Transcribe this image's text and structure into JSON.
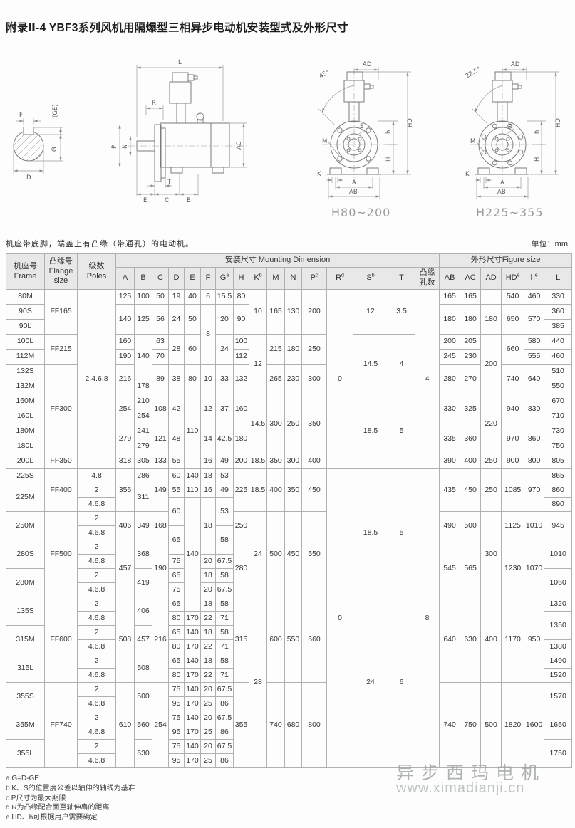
{
  "page": {
    "title": "附录Ⅱ-4 YBF3系列风机用隔爆型三相异步电动机安装型式及外形尺寸",
    "subtitle": "机座带底脚，端盖上有凸缘（带通孔）的电动机。",
    "unit_label": "单位：mm"
  },
  "drawings": {
    "shaft_section": {
      "labels": {
        "F": "F",
        "GE": "(GE)",
        "G": "G",
        "D": "D"
      }
    },
    "side_view": {
      "labels": {
        "L": "L",
        "R": "R",
        "P": "P",
        "N": "N",
        "AC": "AC",
        "T": "T",
        "E": "E",
        "C": "C",
        "B": "B"
      }
    },
    "front_4hole": {
      "angle": "45°",
      "caption": "H80~200",
      "labels": {
        "AD": "AD",
        "S": "S",
        "M": "M",
        "h": "h",
        "HD": "HD",
        "H": "H",
        "K": "K",
        "A": "A",
        "AB": "AB"
      }
    },
    "front_8hole": {
      "angle": "22.5°",
      "caption": "H225~355",
      "labels": {
        "AD": "AD",
        "S": "S",
        "M": "M",
        "h": "h",
        "HD": "HD",
        "H": "H",
        "K": "K",
        "A": "A",
        "AB": "AB"
      }
    }
  },
  "table": {
    "header": {
      "frame": "机座号\nFrame",
      "flange": "凸缘号\nFlange\nsize",
      "poles": "级数\nPoles",
      "mounting_group": "安装尺寸 Mounting Dimension",
      "figure_group": "外形尺寸Figure size",
      "columns": [
        {
          "b": "A"
        },
        {
          "b": "B"
        },
        {
          "b": "C"
        },
        {
          "b": "D"
        },
        {
          "b": "E"
        },
        {
          "b": "F"
        },
        {
          "b": "G",
          "s": "a"
        },
        {
          "b": "H"
        },
        {
          "b": "K",
          "s": "b"
        },
        {
          "b": "M"
        },
        {
          "b": "N"
        },
        {
          "b": "P",
          "s": "c"
        },
        {
          "b": "R",
          "s": "d"
        },
        {
          "b": "S",
          "s": "b"
        },
        {
          "b": "T"
        },
        {
          "b": "凸缘\n孔数"
        },
        {
          "b": "AB"
        },
        {
          "b": "AC"
        },
        {
          "b": "AD"
        },
        {
          "b": "HD",
          "s": "e"
        },
        {
          "b": "h",
          "s": "e"
        },
        {
          "b": "L"
        }
      ]
    },
    "rows": [
      [
        [
          "80M"
        ],
        [
          "FF165",
          3
        ],
        [
          "2.4.6.8",
          12
        ],
        [
          "125"
        ],
        [
          "100"
        ],
        [
          "50"
        ],
        [
          "19"
        ],
        [
          "40"
        ],
        [
          "6"
        ],
        [
          "15.5"
        ],
        [
          "80"
        ],
        [
          "10",
          3
        ],
        [
          "165",
          3
        ],
        [
          "130",
          3
        ],
        [
          "200",
          3
        ],
        [
          "0",
          12
        ],
        [
          "12",
          3
        ],
        [
          "3.5",
          3
        ],
        [
          "4",
          12
        ],
        [
          "165"
        ],
        [
          "165"
        ],
        [
          "",
          1
        ],
        [
          "540"
        ],
        [
          "460"
        ],
        [
          "330"
        ]
      ],
      [
        [
          "90S"
        ],
        [
          "140",
          2
        ],
        [
          "125",
          2
        ],
        [
          "56",
          2
        ],
        [
          "24",
          2
        ],
        [
          "50",
          2
        ],
        [
          "8",
          4
        ],
        [
          "20",
          2
        ],
        [
          "90",
          2
        ],
        [
          "180",
          2
        ],
        [
          "180",
          2
        ],
        [
          "180",
          2
        ],
        [
          "650",
          2
        ],
        [
          "570",
          2
        ],
        [
          "360"
        ]
      ],
      [
        [
          "90L"
        ],
        [
          "385"
        ]
      ],
      [
        [
          "100L"
        ],
        [
          "FF215",
          2
        ],
        [
          "160"
        ],
        [
          "140",
          3
        ],
        [
          "63"
        ],
        [
          "28",
          2
        ],
        [
          "60",
          2
        ],
        [
          "24",
          2
        ],
        [
          "100"
        ],
        [
          "12",
          4
        ],
        [
          "215",
          2
        ],
        [
          "180",
          2
        ],
        [
          "250",
          2
        ],
        [
          "14.5",
          4
        ],
        [
          "4",
          4
        ],
        [
          "200"
        ],
        [
          "205"
        ],
        [
          "200",
          4
        ],
        [
          "660",
          2
        ],
        [
          "580"
        ],
        [
          "440"
        ]
      ],
      [
        [
          "112M"
        ],
        [
          "190"
        ],
        [
          "70"
        ],
        [
          "112"
        ],
        [
          "245"
        ],
        [
          "230"
        ],
        [
          "555"
        ],
        [
          "460"
        ]
      ],
      [
        [
          "132S"
        ],
        [
          "FF300",
          6
        ],
        [
          "216",
          2
        ],
        [
          "89",
          2
        ],
        [
          "38",
          2
        ],
        [
          "80",
          2
        ],
        [
          "10",
          2
        ],
        [
          "33",
          2
        ],
        [
          "132",
          2
        ],
        [
          "265",
          2
        ],
        [
          "230",
          2
        ],
        [
          "300",
          2
        ],
        [
          "280",
          2
        ],
        [
          "270",
          2
        ],
        [
          "740",
          2
        ],
        [
          "640",
          2
        ],
        [
          "510"
        ]
      ],
      [
        [
          "132M"
        ],
        [
          "178"
        ],
        [
          "550"
        ]
      ],
      [
        [
          "160M"
        ],
        [
          "254",
          2
        ],
        [
          "210"
        ],
        [
          "108",
          2
        ],
        [
          "42",
          2
        ],
        [
          "110",
          5
        ],
        [
          "12",
          2
        ],
        [
          "37",
          2
        ],
        [
          "160",
          2
        ],
        [
          "14.5",
          4
        ],
        [
          "300",
          4
        ],
        [
          "250",
          4
        ],
        [
          "350",
          4
        ],
        [
          "18.5",
          5
        ],
        [
          "5",
          5
        ],
        [
          "330",
          2
        ],
        [
          "325",
          2
        ],
        [
          "220",
          4
        ],
        [
          "940",
          2
        ],
        [
          "830",
          2
        ],
        [
          "670"
        ]
      ],
      [
        [
          "160L"
        ],
        [
          "254"
        ],
        [
          "710"
        ]
      ],
      [
        [
          "180M"
        ],
        [
          "279",
          2
        ],
        [
          "241"
        ],
        [
          "121",
          2
        ],
        [
          "48",
          2
        ],
        [
          "14",
          2
        ],
        [
          "42.5",
          2
        ],
        [
          "180",
          2
        ],
        [
          "335",
          2
        ],
        [
          "360",
          2
        ],
        [
          "970",
          2
        ],
        [
          "860",
          2
        ],
        [
          "730"
        ]
      ],
      [
        [
          "180L"
        ],
        [
          "279"
        ],
        [
          "750"
        ]
      ],
      [
        [
          "200L"
        ],
        [
          "FF350"
        ],
        [
          "318"
        ],
        [
          "305"
        ],
        [
          "133"
        ],
        [
          "55"
        ],
        [
          "16"
        ],
        [
          "49"
        ],
        [
          "200"
        ],
        [
          "18.5"
        ],
        [
          "350"
        ],
        [
          "300"
        ],
        [
          "400"
        ],
        [
          "390"
        ],
        [
          "400"
        ],
        [
          "250"
        ],
        [
          "900"
        ],
        [
          "800"
        ],
        [
          "805"
        ]
      ],
      [
        [
          "225S"
        ],
        [
          "FF400",
          3
        ],
        [
          "4.8"
        ],
        [
          "356",
          3
        ],
        [
          "286"
        ],
        [
          "149",
          3
        ],
        [
          "60"
        ],
        [
          "140"
        ],
        [
          "18"
        ],
        [
          "53"
        ],
        [
          "225",
          3
        ],
        [
          "18.5",
          3
        ],
        [
          "400",
          3
        ],
        [
          "350",
          3
        ],
        [
          "450",
          3
        ],
        [
          "0",
          21
        ],
        [
          "18.5",
          9
        ],
        [
          "5",
          9
        ],
        [
          "8",
          21
        ],
        [
          "435",
          3
        ],
        [
          "450",
          3
        ],
        [
          "250",
          3
        ],
        [
          "1085",
          3
        ],
        [
          "970",
          3
        ],
        [
          "865"
        ]
      ],
      [
        [
          "225M",
          2
        ],
        [
          "2"
        ],
        [
          "311",
          2
        ],
        [
          "55"
        ],
        [
          "110"
        ],
        [
          "16"
        ],
        [
          "49"
        ],
        [
          "860"
        ]
      ],
      [
        [
          "4.6.8"
        ],
        [
          "60",
          2
        ],
        [
          "140",
          8
        ],
        [
          "18",
          4
        ],
        [
          "53",
          2
        ],
        [
          "890"
        ]
      ],
      [
        [
          "250M",
          2
        ],
        [
          "FF500",
          6
        ],
        [
          "2"
        ],
        [
          "406",
          2
        ],
        [
          "349",
          2
        ],
        [
          "168",
          2
        ],
        [
          "250",
          2
        ],
        [
          "24",
          6
        ],
        [
          "500",
          6
        ],
        [
          "450",
          6
        ],
        [
          "550",
          6
        ],
        [
          "490",
          2
        ],
        [
          "500",
          2
        ],
        [
          "300",
          6
        ],
        [
          "1125",
          2
        ],
        [
          "1010",
          2
        ],
        [
          "945",
          2
        ]
      ],
      [
        [
          "4.6.8"
        ],
        [
          "65",
          2
        ],
        [
          "58",
          2
        ]
      ],
      [
        [
          "280S",
          2
        ],
        [
          "2"
        ],
        [
          "457",
          4
        ],
        [
          "368",
          2
        ],
        [
          "190",
          4
        ],
        [
          "280",
          4
        ],
        [
          "545",
          4
        ],
        [
          "565",
          4
        ],
        [
          "1230",
          4
        ],
        [
          "1070",
          4
        ],
        [
          "1010",
          2
        ]
      ],
      [
        [
          "4.6.8"
        ],
        [
          "75"
        ],
        [
          "20"
        ],
        [
          "67.5"
        ]
      ],
      [
        [
          "280M",
          2
        ],
        [
          "2"
        ],
        [
          "419",
          2
        ],
        [
          "65"
        ],
        [
          "18"
        ],
        [
          "58"
        ],
        [
          "1060",
          2
        ]
      ],
      [
        [
          "4.6.8"
        ],
        [
          "75"
        ],
        [
          "20"
        ],
        [
          "67.5"
        ]
      ],
      [
        [
          "135S",
          2
        ],
        [
          "FF600",
          6
        ],
        [
          "2"
        ],
        [
          "508",
          6
        ],
        [
          "406",
          2
        ],
        [
          "216",
          6
        ],
        [
          "65"
        ],
        [
          "18"
        ],
        [
          "58"
        ],
        [
          "315",
          6
        ],
        [
          "28",
          12
        ],
        [
          "600",
          6
        ],
        [
          "550",
          6
        ],
        [
          "660",
          6
        ],
        [
          "24",
          12
        ],
        [
          "6",
          12
        ],
        [
          "640",
          6
        ],
        [
          "630",
          6
        ],
        [
          "400",
          6
        ],
        [
          "1170",
          6
        ],
        [
          "950",
          6
        ],
        [
          "1320"
        ]
      ],
      [
        [
          "4.6.8"
        ],
        [
          "80"
        ],
        [
          "170"
        ],
        [
          "22"
        ],
        [
          "71"
        ],
        [
          "1350",
          2
        ]
      ],
      [
        [
          "315M",
          2
        ],
        [
          "2"
        ],
        [
          "457",
          2
        ],
        [
          "65"
        ],
        [
          "140"
        ],
        [
          "18"
        ],
        [
          "58"
        ]
      ],
      [
        [
          "4.6.8"
        ],
        [
          "80"
        ],
        [
          "170"
        ],
        [
          "22"
        ],
        [
          "71"
        ],
        [
          "1380"
        ]
      ],
      [
        [
          "315L",
          2
        ],
        [
          "2"
        ],
        [
          "508",
          2
        ],
        [
          "65"
        ],
        [
          "140"
        ],
        [
          "18"
        ],
        [
          "58"
        ],
        [
          "1490"
        ]
      ],
      [
        [
          "4.6.8"
        ],
        [
          "80"
        ],
        [
          "170"
        ],
        [
          "22"
        ],
        [
          "71"
        ],
        [
          "1520"
        ]
      ],
      [
        [
          "355S",
          2
        ],
        [
          "FF740",
          6
        ],
        [
          "2"
        ],
        [
          "610",
          6
        ],
        [
          "500",
          2
        ],
        [
          "254",
          6
        ],
        [
          "75"
        ],
        [
          "140"
        ],
        [
          "20"
        ],
        [
          "67.5"
        ],
        [
          "355",
          6
        ],
        [
          "740",
          6
        ],
        [
          "680",
          6
        ],
        [
          "800",
          6
        ],
        [
          "740",
          6
        ],
        [
          "750",
          6
        ],
        [
          "500",
          6
        ],
        [
          "1820",
          6
        ],
        [
          "1600",
          6
        ],
        [
          "1570",
          2
        ]
      ],
      [
        [
          "4.6.8"
        ],
        [
          "95"
        ],
        [
          "170"
        ],
        [
          "25"
        ],
        [
          "86"
        ]
      ],
      [
        [
          "355M",
          2
        ],
        [
          "2"
        ],
        [
          "560",
          2
        ],
        [
          "75"
        ],
        [
          "140"
        ],
        [
          "20"
        ],
        [
          "67.5"
        ],
        [
          "1650",
          2
        ]
      ],
      [
        [
          "4.6.8"
        ],
        [
          "95"
        ],
        [
          "170"
        ],
        [
          "25"
        ],
        [
          "86"
        ]
      ],
      [
        [
          "355L",
          2
        ],
        [
          "2"
        ],
        [
          "630",
          2
        ],
        [
          "75"
        ],
        [
          "140"
        ],
        [
          "20"
        ],
        [
          "67.5"
        ],
        [
          "1750",
          2
        ]
      ],
      [
        [
          "4.6.8"
        ],
        [
          "95"
        ],
        [
          "170"
        ],
        [
          "25"
        ],
        [
          "86"
        ]
      ]
    ]
  },
  "notes": [
    "a.G=D-GE",
    "b.K、S的位置度公差以轴伸的轴线为基准",
    "c.P尺寸为最大期限",
    "d.R为凸缘配合面至轴伸肩的距离",
    "e.HD、h可根据用户需要确定"
  ],
  "watermark": {
    "line1": "异步西玛电机",
    "line2": "www.ximadianji.cn"
  }
}
